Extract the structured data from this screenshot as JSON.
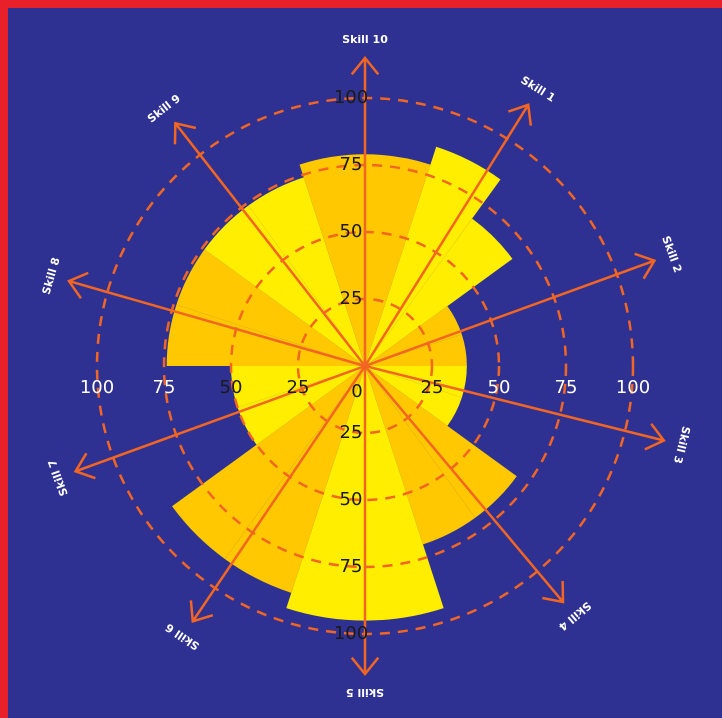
{
  "chart_data": {
    "type": "polar-area",
    "radial_range": [
      0,
      100
    ],
    "radial_ticks": [
      0,
      25,
      50,
      75,
      100
    ],
    "tick_labels": [
      "0",
      "25",
      "50",
      "75",
      "100"
    ],
    "categories": [
      "Skill 1",
      "Skill 2",
      "Skill 3",
      "Skill 4",
      "Skill 5",
      "Skill 6",
      "Skill 7",
      "Skill 8",
      "Skill 9",
      "Skill 10"
    ],
    "axis_angles_deg": [
      32,
      70,
      104,
      140,
      180,
      214,
      250,
      286,
      322,
      360
    ],
    "sectors": [
      {
        "start_deg": 0,
        "end_deg": 18,
        "value": 79,
        "color": "#ffc800"
      },
      {
        "start_deg": 18,
        "end_deg": 36,
        "value": 86,
        "color": "#ffee00"
      },
      {
        "start_deg": 36,
        "end_deg": 54,
        "value": 68,
        "color": "#ffee00"
      },
      {
        "start_deg": 54,
        "end_deg": 72,
        "value": 38,
        "color": "#ffc800"
      },
      {
        "start_deg": 72,
        "end_deg": 90,
        "value": 38,
        "color": "#ffc800"
      },
      {
        "start_deg": 90,
        "end_deg": 108,
        "value": 38,
        "color": "#ffee00"
      },
      {
        "start_deg": 108,
        "end_deg": 126,
        "value": 38,
        "color": "#ffee00"
      },
      {
        "start_deg": 126,
        "end_deg": 144,
        "value": 70,
        "color": "#ffc800"
      },
      {
        "start_deg": 144,
        "end_deg": 162,
        "value": 70,
        "color": "#ffc800"
      },
      {
        "start_deg": 162,
        "end_deg": 180,
        "value": 95,
        "color": "#ffee00"
      },
      {
        "start_deg": 180,
        "end_deg": 198,
        "value": 95,
        "color": "#ffee00"
      },
      {
        "start_deg": 198,
        "end_deg": 216,
        "value": 89,
        "color": "#ffc800"
      },
      {
        "start_deg": 216,
        "end_deg": 234,
        "value": 89,
        "color": "#ffc800"
      },
      {
        "start_deg": 234,
        "end_deg": 252,
        "value": 50,
        "color": "#ffee00"
      },
      {
        "start_deg": 252,
        "end_deg": 270,
        "value": 50,
        "color": "#ffee00"
      },
      {
        "start_deg": 270,
        "end_deg": 288,
        "value": 74,
        "color": "#ffc800"
      },
      {
        "start_deg": 288,
        "end_deg": 306,
        "value": 74,
        "color": "#ffc800"
      },
      {
        "start_deg": 306,
        "end_deg": 324,
        "value": 74,
        "color": "#ffee00"
      },
      {
        "start_deg": 324,
        "end_deg": 342,
        "value": 74,
        "color": "#ffee00"
      },
      {
        "start_deg": 342,
        "end_deg": 360,
        "value": 79,
        "color": "#ffc800"
      }
    ],
    "grid": "dashed-circles",
    "colors": {
      "background": "#2e3192",
      "border": "#e8202a",
      "axis": "#f26522",
      "grid": "#f26522",
      "fill_light": "#ffee00",
      "fill_dark": "#ffc800"
    }
  }
}
